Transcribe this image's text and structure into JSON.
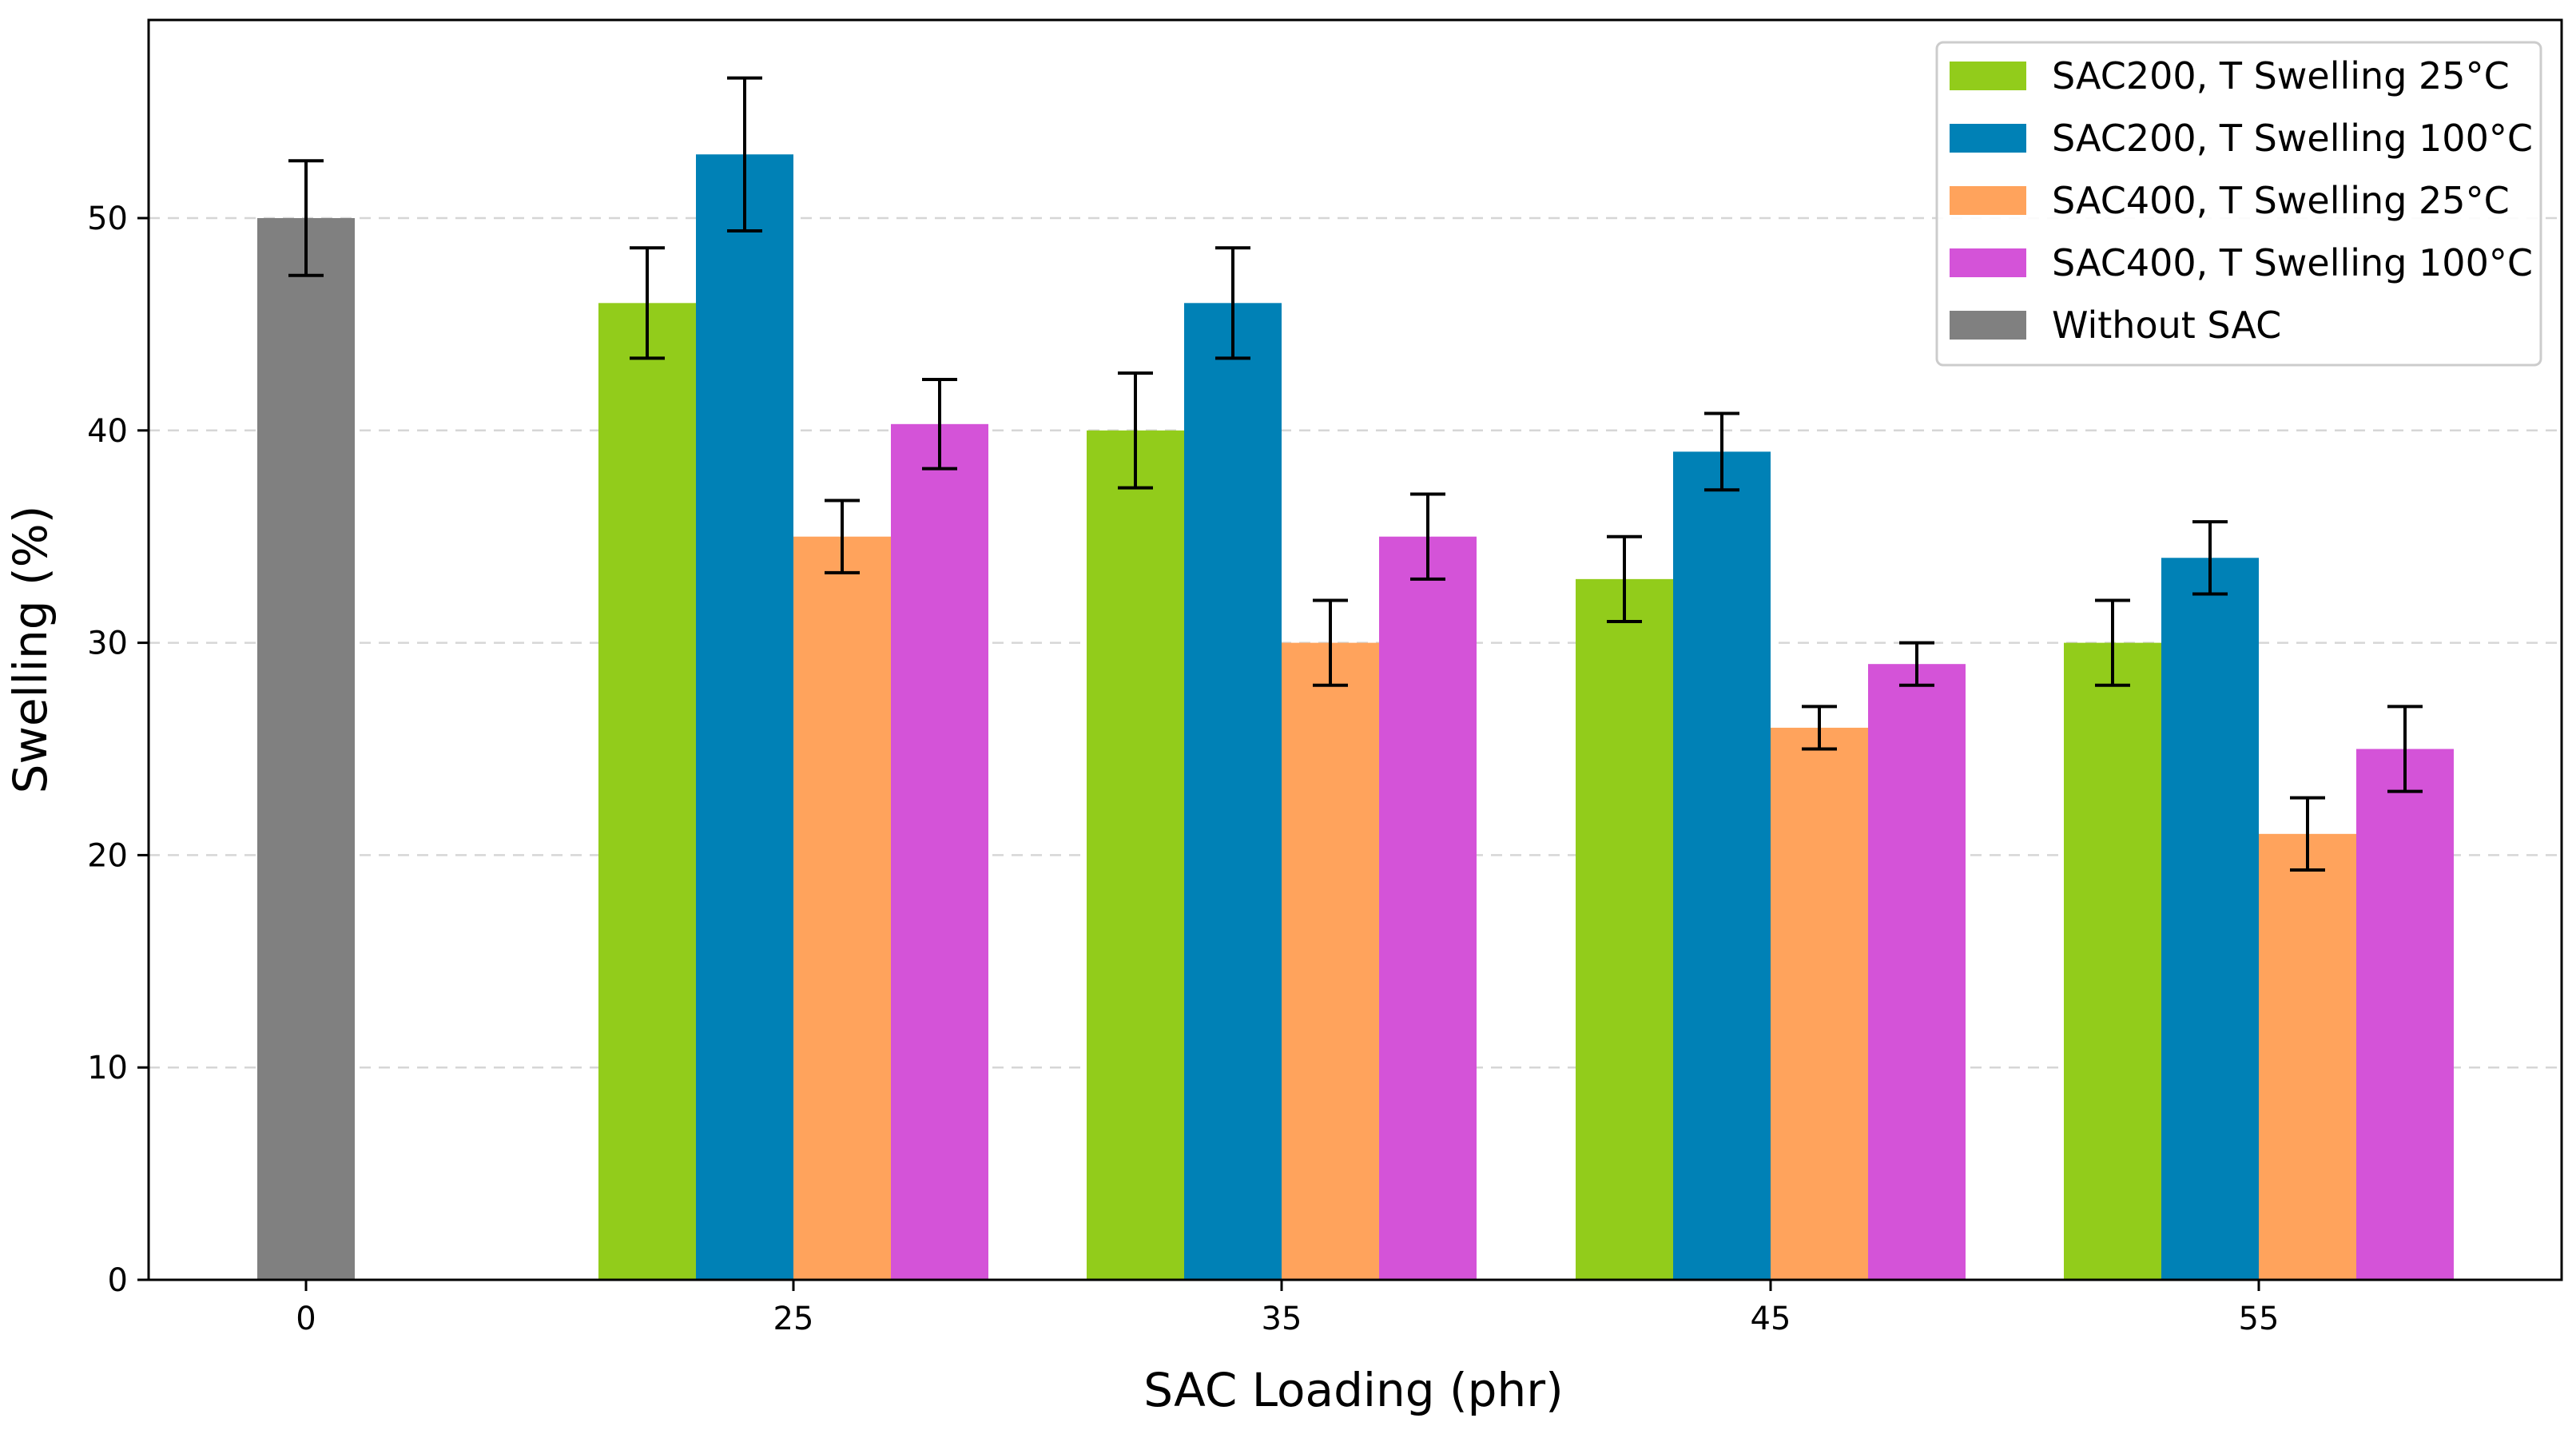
{
  "chart_data": {
    "type": "bar",
    "title": "",
    "xlabel": "SAC Loading (phr)",
    "ylabel": "Swelling (%)",
    "ylim": [
      0,
      60
    ],
    "yticks": [
      0,
      10,
      20,
      30,
      40,
      50
    ],
    "grid": "horizontal dashed",
    "legend_position": "top-right",
    "categories": [
      "0",
      "25",
      "35",
      "45",
      "55"
    ],
    "series": [
      {
        "name": "SAC200, T Swelling 25°C",
        "color": "#92cc1b",
        "values": [
          null,
          46,
          40,
          33,
          30
        ],
        "errors": [
          null,
          2.6,
          2.7,
          2.0,
          2.0
        ]
      },
      {
        "name": "SAC200, T Swelling 100°C",
        "color": "#0081b6",
        "values": [
          null,
          53,
          46,
          39,
          34
        ],
        "errors": [
          null,
          3.6,
          2.6,
          1.8,
          1.7
        ]
      },
      {
        "name": "SAC400, T Swelling 25°C",
        "color": "#ffa35c",
        "values": [
          null,
          35,
          30,
          26,
          21
        ],
        "errors": [
          null,
          1.7,
          2.0,
          1.0,
          1.7
        ]
      },
      {
        "name": "SAC400, T Swelling 100°C",
        "color": "#d453d8",
        "values": [
          null,
          40.3,
          35,
          29,
          25
        ],
        "errors": [
          null,
          2.1,
          2.0,
          1.0,
          2.0
        ]
      },
      {
        "name": "Without SAC",
        "color": "#808080",
        "values": [
          50,
          null,
          null,
          null,
          null
        ],
        "errors": [
          2.7,
          null,
          null,
          null,
          null
        ]
      }
    ]
  }
}
